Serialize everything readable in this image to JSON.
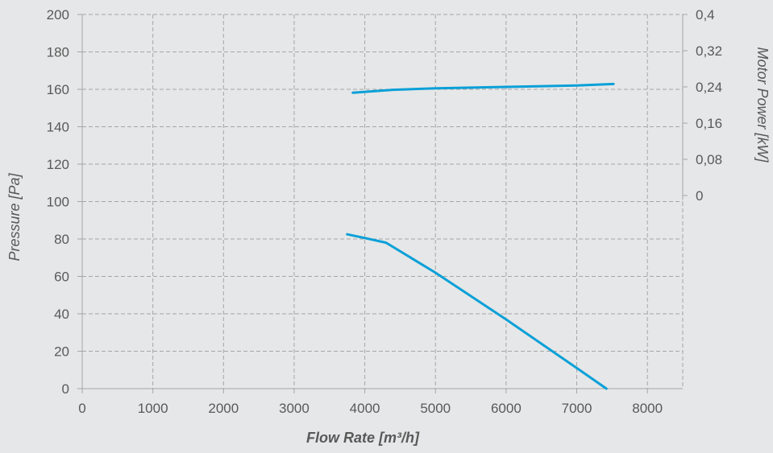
{
  "chart_data": {
    "type": "line",
    "xlabel": "Flow Rate [m³/h]",
    "ylabel": "Pressure [Pa]",
    "y2label": "Motor Power [kW]",
    "xlim": [
      0,
      8500
    ],
    "ylim": [
      0,
      200
    ],
    "y2lim": [
      0,
      0.4
    ],
    "x_ticks": [
      "0",
      "1000",
      "2000",
      "3000",
      "4000",
      "5000",
      "6000",
      "7000",
      "8000"
    ],
    "x_tick_values": [
      0,
      1000,
      2000,
      3000,
      4000,
      5000,
      6000,
      7000,
      8000
    ],
    "y_ticks": [
      "0",
      "20",
      "40",
      "60",
      "80",
      "100",
      "120",
      "140",
      "160",
      "180",
      "200"
    ],
    "y_tick_values": [
      0,
      20,
      40,
      60,
      80,
      100,
      120,
      140,
      160,
      180,
      200
    ],
    "y2_ticks": [
      "0",
      "0,08",
      "0,16",
      "0,24",
      "0,32",
      "0,4"
    ],
    "y2_tick_values": [
      0,
      0.08,
      0.16,
      0.24,
      0.32,
      0.4
    ],
    "grid": true,
    "line_color": "#0aa0d8",
    "series": [
      {
        "axis": "left",
        "x": [
          3750,
          4000,
          4300,
          5000,
          6000,
          7000,
          7420
        ],
        "y": [
          82.5,
          80.5,
          78,
          62,
          37,
          11,
          0
        ]
      },
      {
        "axis": "right",
        "x": [
          3830,
          4400,
          5000,
          6000,
          7000,
          7520
        ],
        "y": [
          0.2272,
          0.2336,
          0.2368,
          0.24,
          0.2432,
          0.2464
        ]
      }
    ]
  }
}
